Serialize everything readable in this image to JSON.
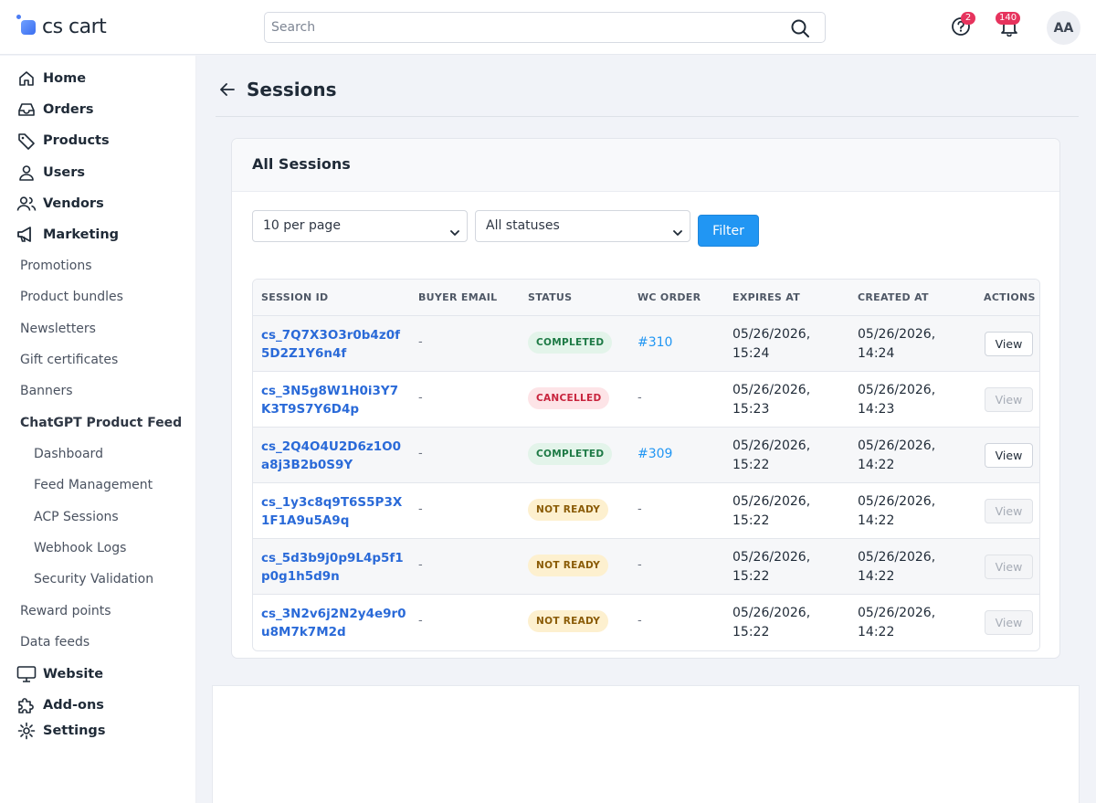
{
  "brand": {
    "logo_text": "cs cart"
  },
  "search": {
    "placeholder": "Search"
  },
  "header": {
    "help_badge": "2",
    "notifications_badge": "140",
    "avatar_initials": "AA"
  },
  "sidebar": {
    "main": [
      {
        "label": "Home",
        "icon": "home-icon"
      },
      {
        "label": "Orders",
        "icon": "inbox-icon"
      },
      {
        "label": "Products",
        "icon": "tag-icon"
      },
      {
        "label": "Users",
        "icon": "user-icon"
      },
      {
        "label": "Vendors",
        "icon": "users-icon"
      },
      {
        "label": "Marketing",
        "icon": "megaphone-icon"
      }
    ],
    "marketing_items": [
      "Promotions",
      "Product bundles",
      "Newsletters",
      "Gift certificates",
      "Banners",
      "ChatGPT Product Feed"
    ],
    "chatgpt_items": [
      "Dashboard",
      "Feed Management",
      "ACP Sessions",
      "Webhook Logs",
      "Security Validation"
    ],
    "more_items": [
      "Reward points",
      "Data feeds"
    ],
    "bottom": [
      {
        "label": "Website",
        "icon": "monitor-icon"
      },
      {
        "label": "Add-ons",
        "icon": "puzzle-icon"
      },
      {
        "label": "Settings",
        "icon": "gear-icon"
      }
    ]
  },
  "page": {
    "title": "Sessions"
  },
  "card": {
    "title": "All Sessions"
  },
  "filters": {
    "per_page": "10 per page",
    "status": "All statuses",
    "filter_label": "Filter"
  },
  "table": {
    "headers": [
      "SESSION ID",
      "BUYER EMAIL",
      "STATUS",
      "WC ORDER",
      "EXPIRES AT",
      "CREATED AT",
      "ACTIONS"
    ],
    "rows": [
      {
        "session_id": "cs_7Q7X3O3r0b4z0f5D2Z1Y6n4f",
        "buyer_email": "-",
        "status": "COMPLETED",
        "wc_order": "#310",
        "expires_date": "05/26/2026,",
        "expires_time": "15:24",
        "created_date": "05/26/2026,",
        "created_time": "14:24",
        "action": "View",
        "action_enabled": true
      },
      {
        "session_id": "cs_3N5g8W1H0i3Y7K3T9S7Y6D4p",
        "buyer_email": "-",
        "status": "CANCELLED",
        "wc_order": "-",
        "expires_date": "05/26/2026,",
        "expires_time": "15:23",
        "created_date": "05/26/2026,",
        "created_time": "14:23",
        "action": "View",
        "action_enabled": false
      },
      {
        "session_id": "cs_2Q4O4U2D6z1O0a8j3B2b0S9Y",
        "buyer_email": "-",
        "status": "COMPLETED",
        "wc_order": "#309",
        "expires_date": "05/26/2026,",
        "expires_time": "15:22",
        "created_date": "05/26/2026,",
        "created_time": "14:22",
        "action": "View",
        "action_enabled": true
      },
      {
        "session_id": "cs_1y3c8q9T6S5P3X1F1A9u5A9q",
        "buyer_email": "-",
        "status": "NOT READY",
        "wc_order": "-",
        "expires_date": "05/26/2026,",
        "expires_time": "15:22",
        "created_date": "05/26/2026,",
        "created_time": "14:22",
        "action": "View",
        "action_enabled": false
      },
      {
        "session_id": "cs_5d3b9j0p9L4p5f1p0g1h5d9n",
        "buyer_email": "-",
        "status": "NOT READY",
        "wc_order": "-",
        "expires_date": "05/26/2026,",
        "expires_time": "15:22",
        "created_date": "05/26/2026,",
        "created_time": "14:22",
        "action": "View",
        "action_enabled": false
      },
      {
        "session_id": "cs_3N2v6j2N2y4e9r0u8M7k7M2d",
        "buyer_email": "-",
        "status": "NOT READY",
        "wc_order": "-",
        "expires_date": "05/26/2026,",
        "expires_time": "15:22",
        "created_date": "05/26/2026,",
        "created_time": "14:22",
        "action": "View",
        "action_enabled": false
      }
    ]
  },
  "colors": {
    "accent": "#2196f3",
    "link": "#2a6ad8",
    "badge": "#e6335d",
    "completed": "#1d7a45",
    "cancelled": "#c8243d",
    "not_ready": "#8a5b06"
  }
}
